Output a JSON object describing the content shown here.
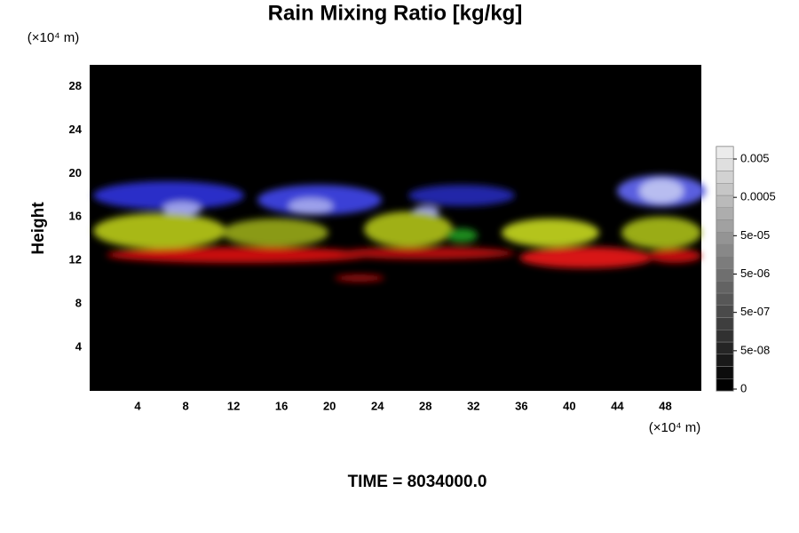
{
  "chart_data": {
    "type": "volume",
    "title": "Rain Mixing Ratio [kg/kg]",
    "ylabel": "Height",
    "xunit": "(×10⁴ m)",
    "yunit": "(×10⁴ m)",
    "footer": "TIME = 8034000.0",
    "xlim": [
      0,
      51
    ],
    "ylim": [
      0,
      30
    ],
    "xticks": [
      4,
      8,
      12,
      16,
      20,
      24,
      28,
      32,
      36,
      40,
      44,
      48
    ],
    "yticks": [
      4,
      8,
      12,
      16,
      20,
      24,
      28
    ],
    "colorbar_ticks": [
      0,
      {
        "value": 5e-08,
        "label": "5e-08"
      },
      {
        "value": 5e-07,
        "label": "5e-07"
      },
      {
        "value": 5e-06,
        "label": "5e-06"
      },
      {
        "value": 5e-05,
        "label": "5e-05"
      },
      0.0005,
      0.005
    ]
  }
}
